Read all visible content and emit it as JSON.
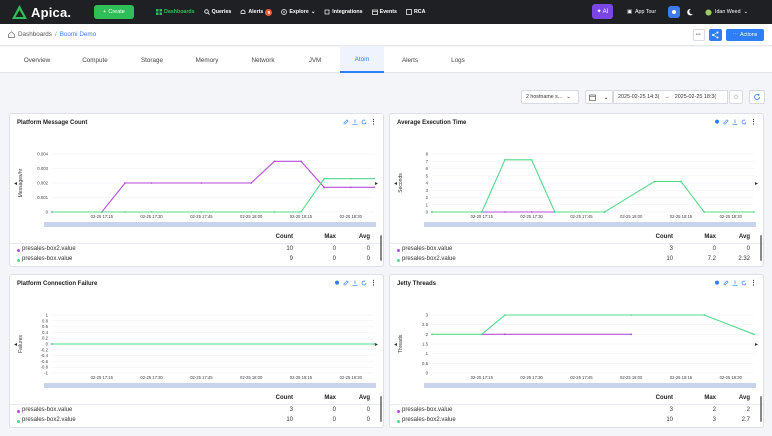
{
  "nav": {
    "logo": "Apica.",
    "create": "Create",
    "items": [
      {
        "label": "Dashboards",
        "icon": "dashboard-icon"
      },
      {
        "label": "Queries",
        "icon": "search-icon"
      },
      {
        "label": "Alerts",
        "icon": "bell-icon",
        "badge": "9"
      },
      {
        "label": "Explore",
        "icon": "compass-icon"
      },
      {
        "label": "Integrations",
        "icon": "plug-icon"
      },
      {
        "label": "Events",
        "icon": "calendar-icon"
      },
      {
        "label": "RCA",
        "icon": "rca-icon"
      }
    ],
    "ai": "AI",
    "app_tour": "App Tour",
    "user": "Idan Weed"
  },
  "breadcrumb": {
    "root": "Dashboards",
    "sep": "/",
    "current": "Boomi Demo"
  },
  "header": {
    "actions": "Actions"
  },
  "tabs": [
    "Overview",
    "Compute",
    "Storage",
    "Memory",
    "Network",
    "JVM",
    "Atom",
    "Alerts",
    "Logs"
  ],
  "active_tab": "Atom",
  "filters": {
    "hosts": "2 hostname s...",
    "from": "2025-02-25 14:3(",
    "arrow": "→",
    "to": "2025-02-25 18:3("
  },
  "colors": {
    "purple": "#b84ddb",
    "green": "#56d98a",
    "accent": "#2d7ef7"
  },
  "stats_headers": [
    "Count",
    "Max",
    "Avg"
  ],
  "x_ticks": [
    "02-25 17:15",
    "02-25 17:30",
    "02-25 17:45",
    "02-25 18:00",
    "02-25 18:15",
    "02-25 18:30"
  ],
  "panels": [
    {
      "title": "Platform Message Count",
      "ylabel": "Messages/hr",
      "yticks": [
        "0.004",
        "0.003",
        "0.002",
        "0.001",
        "0"
      ],
      "rows": [
        {
          "name": "presales-box2.value",
          "count": "10",
          "max": "0",
          "avg": "0"
        },
        {
          "name": "presales-box.value",
          "count": "9",
          "max": "0",
          "avg": "0"
        }
      ]
    },
    {
      "title": "Average Execution Time",
      "ylabel": "Seconds",
      "yticks": [
        "8",
        "7",
        "6",
        "5",
        "4",
        "3",
        "2",
        "1",
        "0"
      ],
      "rows": [
        {
          "name": "presales-box.value",
          "count": "3",
          "max": "0",
          "avg": "0"
        },
        {
          "name": "presales-box2.value",
          "count": "10",
          "max": "7.2",
          "avg": "2.32"
        }
      ]
    },
    {
      "title": "Platform Connection Failure",
      "ylabel": "Failures",
      "yticks": [
        "1",
        "0.8",
        "0.6",
        "0.4",
        "0.2",
        "0",
        "-0.2",
        "-0.4",
        "-0.6",
        "-0.8",
        "-1"
      ],
      "rows": [
        {
          "name": "presales-box.value",
          "count": "3",
          "max": "0",
          "avg": "0"
        },
        {
          "name": "presales-box2.value",
          "count": "10",
          "max": "0",
          "avg": "0"
        }
      ]
    },
    {
      "title": "Jetty Threads",
      "ylabel": "Threads",
      "yticks": [
        "3",
        "2.5",
        "2",
        "1.5",
        "1",
        "0.5",
        "0"
      ],
      "rows": [
        {
          "name": "presales-box.value",
          "count": "3",
          "max": "2",
          "avg": "2"
        },
        {
          "name": "presales-box2.value",
          "count": "10",
          "max": "3",
          "avg": "2.7"
        }
      ]
    }
  ],
  "chart_data": [
    {
      "type": "line",
      "title": "Platform Message Count",
      "ylabel": "Messages/hr",
      "ylim": [
        0,
        0.004
      ],
      "x": [
        "17:00",
        "17:15",
        "17:22",
        "17:30",
        "17:45",
        "18:00",
        "18:07",
        "18:15",
        "18:22",
        "18:30",
        "18:37"
      ],
      "series": [
        {
          "name": "presales-box2.value",
          "color": "#b84ddb",
          "values": [
            0,
            0,
            0.002,
            0.002,
            0.002,
            0.002,
            0.0035,
            0.0035,
            0.0017,
            0.0017,
            0.0017
          ]
        },
        {
          "name": "presales-box.value",
          "color": "#56d98a",
          "values": [
            0,
            0,
            0,
            0,
            0,
            0,
            0,
            0,
            0.0023,
            0.0023,
            0.0023
          ]
        }
      ]
    },
    {
      "type": "line",
      "title": "Average Execution Time",
      "ylabel": "Seconds",
      "ylim": [
        0,
        8
      ],
      "x": [
        "17:00",
        "17:15",
        "17:22",
        "17:30",
        "17:37",
        "17:52",
        "18:07",
        "18:15",
        "18:22",
        "18:37"
      ],
      "series": [
        {
          "name": "presales-box.value",
          "color": "#b84ddb",
          "values": [
            0,
            0,
            0,
            0,
            0,
            0,
            null,
            null,
            null,
            null
          ]
        },
        {
          "name": "presales-box2.value",
          "color": "#56d98a",
          "values": [
            0,
            0,
            7.2,
            7.2,
            0,
            0,
            4.2,
            4.2,
            0,
            0
          ]
        }
      ]
    },
    {
      "type": "line",
      "title": "Platform Connection Failure",
      "ylabel": "Failures",
      "ylim": [
        -1,
        1
      ],
      "x": [
        "17:00",
        "18:37"
      ],
      "series": [
        {
          "name": "presales-box.value",
          "color": "#b84ddb",
          "values": [
            0,
            0
          ]
        },
        {
          "name": "presales-box2.value",
          "color": "#56d98a",
          "values": [
            0,
            0
          ]
        }
      ]
    },
    {
      "type": "line",
      "title": "Jetty Threads",
      "ylabel": "Threads",
      "ylim": [
        0,
        3
      ],
      "x": [
        "17:00",
        "17:15",
        "17:22",
        "18:00",
        "18:22",
        "18:37"
      ],
      "series": [
        {
          "name": "presales-box.value",
          "color": "#b84ddb",
          "values": [
            null,
            2,
            2,
            2,
            null,
            null
          ]
        },
        {
          "name": "presales-box2.value",
          "color": "#56d98a",
          "values": [
            2,
            2,
            3,
            3,
            3,
            2
          ]
        }
      ]
    }
  ]
}
